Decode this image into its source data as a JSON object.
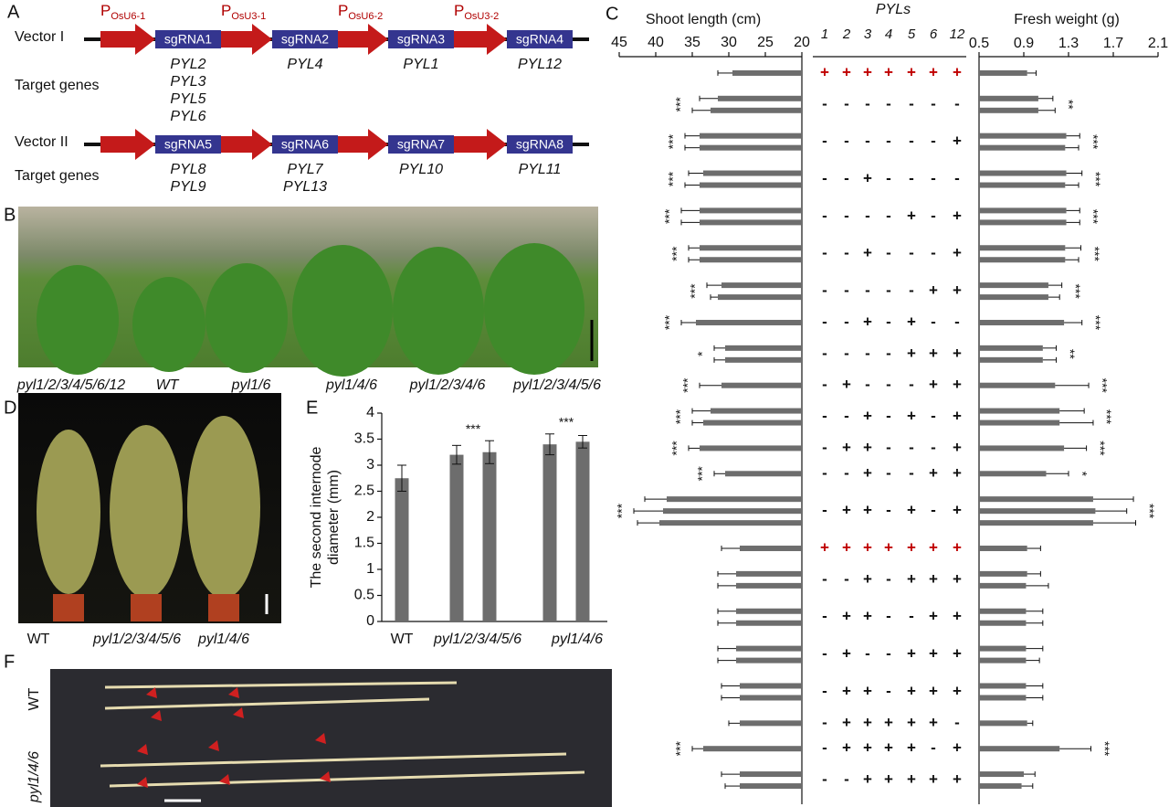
{
  "panel_a": {
    "label": "A",
    "target_label": "Target genes",
    "vectors": [
      {
        "name": "Vector I",
        "promoters": [
          {
            "main": "P",
            "sub": "OsU6-1"
          },
          {
            "main": "P",
            "sub": "OsU3-1"
          },
          {
            "main": "P",
            "sub": "OsU6-2"
          },
          {
            "main": "P",
            "sub": "OsU3-2"
          }
        ],
        "sgrnas": [
          "sgRNA1",
          "sgRNA2",
          "sgRNA3",
          "sgRNA4"
        ],
        "targets": [
          [
            "PYL2",
            "PYL3",
            "PYL5",
            "PYL6"
          ],
          [
            "PYL4"
          ],
          [
            "PYL1"
          ],
          [
            "PYL12"
          ]
        ]
      },
      {
        "name": "Vector II",
        "sgrnas": [
          "sgRNA5",
          "sgRNA6",
          "sgRNA7",
          "sgRNA8"
        ],
        "targets": [
          [
            "PYL8",
            "PYL9"
          ],
          [
            "PYL7",
            "PYL13"
          ],
          [
            "PYL10"
          ],
          [
            "PYL11"
          ]
        ]
      }
    ]
  },
  "panel_b": {
    "label": "B",
    "captions": [
      "pyl1/2/3/4/5/6/12",
      "WT",
      "pyl1/6",
      "pyl1/4/6",
      "pyl1/2/3/4/6",
      "pyl1/2/3/4/5/6"
    ]
  },
  "panel_d": {
    "label": "D",
    "captions": [
      "WT",
      "pyl1/2/3/4/5/6",
      "pyl1/4/6"
    ]
  },
  "panel_e": {
    "label": "E",
    "ylabel": [
      "The second internode",
      "diameter (mm)"
    ],
    "ylim": [
      0,
      4
    ],
    "yticks": [
      0,
      0.5,
      1,
      1.5,
      2,
      2.5,
      3,
      3.5,
      4
    ],
    "color": "#6d6d6d",
    "groups": [
      {
        "label": "WT",
        "values": [
          2.75
        ],
        "errors": [
          0.25
        ]
      },
      {
        "label": "pyl1/2/3/4/5/6",
        "values": [
          3.2,
          3.25
        ],
        "errors": [
          0.18,
          0.22
        ],
        "sig": "***"
      },
      {
        "label": "pyl1/4/6",
        "values": [
          3.4,
          3.45
        ],
        "errors": [
          0.2,
          0.12
        ],
        "sig": "***"
      }
    ]
  },
  "panel_f": {
    "label": "F",
    "labels": [
      "WT",
      "pyl1/4/6"
    ]
  },
  "panel_c": {
    "label": "C",
    "shoot_title": "Shoot length (cm)",
    "xlim": [
      45,
      20
    ],
    "xticks": [
      45,
      40,
      35,
      30,
      25,
      20
    ],
    "weight_title": "Fresh weight (g)",
    "x2lim": [
      0.5,
      2.1
    ],
    "x2ticks": [
      0.5,
      0.9,
      1.3,
      1.7,
      2.1
    ],
    "pyls_title": "PYLs",
    "columns": [
      "1",
      "2",
      "3",
      "4",
      "5",
      "6",
      "12"
    ],
    "color": "#6d6d6d",
    "rows": [
      {
        "signs": [
          "+",
          "+",
          "+",
          "+",
          "+",
          "+",
          "+"
        ],
        "sign_color": "#c00000",
        "shoot": [
          29.5
        ],
        "shoot_err": [
          2
        ],
        "weight": [
          0.93
        ],
        "weight_err": [
          0.08
        ]
      },
      {
        "signs": [
          "-",
          "-",
          "-",
          "-",
          "-",
          "-",
          "-"
        ],
        "shoot": [
          31.5,
          32.5
        ],
        "shoot_err": [
          2.5,
          2.5
        ],
        "weight": [
          1.03,
          1.03
        ],
        "weight_err": [
          0.13,
          0.15
        ],
        "shoot_sig": "***",
        "weight_sig": "**"
      },
      {
        "signs": [
          "-",
          "-",
          "-",
          "-",
          "-",
          "-",
          "+"
        ],
        "shoot": [
          34,
          34
        ],
        "shoot_err": [
          2,
          2
        ],
        "weight": [
          1.28,
          1.27
        ],
        "weight_err": [
          0.12,
          0.12
        ],
        "shoot_sig": "***",
        "weight_sig": "***"
      },
      {
        "signs": [
          "-",
          "-",
          "+",
          "-",
          "-",
          "-",
          "-"
        ],
        "shoot": [
          33.5,
          34
        ],
        "shoot_err": [
          2,
          2
        ],
        "weight": [
          1.28,
          1.27
        ],
        "weight_err": [
          0.14,
          0.12
        ],
        "shoot_sig": "***",
        "weight_sig": "***"
      },
      {
        "signs": [
          "-",
          "-",
          "-",
          "-",
          "+",
          "-",
          "+"
        ],
        "shoot": [
          34,
          34
        ],
        "shoot_err": [
          2.5,
          2.5
        ],
        "weight": [
          1.28,
          1.28
        ],
        "weight_err": [
          0.12,
          0.12
        ],
        "shoot_sig": "***",
        "weight_sig": "***"
      },
      {
        "signs": [
          "-",
          "-",
          "+",
          "-",
          "-",
          "-",
          "+"
        ],
        "shoot": [
          34,
          34
        ],
        "shoot_err": [
          1.5,
          1.5
        ],
        "weight": [
          1.27,
          1.27
        ],
        "weight_err": [
          0.14,
          0.12
        ],
        "shoot_sig": "***",
        "weight_sig": "***"
      },
      {
        "signs": [
          "-",
          "-",
          "-",
          "-",
          "-",
          "+",
          "+"
        ],
        "shoot": [
          31,
          31.5
        ],
        "shoot_err": [
          2,
          1
        ],
        "weight": [
          1.12,
          1.12
        ],
        "weight_err": [
          0.12,
          0.1
        ],
        "shoot_sig": "***",
        "weight_sig": "***"
      },
      {
        "signs": [
          "-",
          "-",
          "+",
          "-",
          "+",
          "-",
          "-"
        ],
        "shoot": [
          34.5
        ],
        "shoot_err": [
          2
        ],
        "weight": [
          1.26
        ],
        "weight_err": [
          0.16
        ],
        "shoot_sig": "***",
        "weight_sig": "***"
      },
      {
        "signs": [
          "-",
          "-",
          "-",
          "-",
          "+",
          "+",
          "+"
        ],
        "shoot": [
          30.5,
          30.5
        ],
        "shoot_err": [
          1.5,
          1.5
        ],
        "weight": [
          1.07,
          1.07
        ],
        "weight_err": [
          0.12,
          0.12
        ],
        "shoot_sig": "*",
        "weight_sig": "**"
      },
      {
        "signs": [
          "-",
          "+",
          "-",
          "-",
          "-",
          "+",
          "+"
        ],
        "shoot": [
          31
        ],
        "shoot_err": [
          3
        ],
        "weight": [
          1.18
        ],
        "weight_err": [
          0.3
        ],
        "shoot_sig": "***",
        "weight_sig": "***"
      },
      {
        "signs": [
          "-",
          "-",
          "+",
          "-",
          "+",
          "-",
          "+"
        ],
        "shoot": [
          32.5,
          33.5
        ],
        "shoot_err": [
          2.5,
          1.5
        ],
        "weight": [
          1.22,
          1.22
        ],
        "weight_err": [
          0.22,
          0.3
        ],
        "shoot_sig": "***",
        "weight_sig": "***"
      },
      {
        "signs": [
          "-",
          "+",
          "+",
          "-",
          "-",
          "-",
          "+"
        ],
        "shoot": [
          34
        ],
        "shoot_err": [
          1.5
        ],
        "weight": [
          1.26
        ],
        "weight_err": [
          0.2
        ],
        "shoot_sig": "***",
        "weight_sig": "***"
      },
      {
        "signs": [
          "-",
          "-",
          "+",
          "-",
          "-",
          "+",
          "+"
        ],
        "shoot": [
          30.5
        ],
        "shoot_err": [
          1.5
        ],
        "weight": [
          1.1
        ],
        "weight_err": [
          0.2
        ],
        "shoot_sig": "***",
        "weight_sig": "*"
      },
      {
        "signs": [
          "-",
          "+",
          "+",
          "-",
          "+",
          "-",
          "+"
        ],
        "shoot": [
          38.5,
          39,
          39.5
        ],
        "shoot_err": [
          3,
          4,
          3
        ],
        "weight": [
          1.52,
          1.54,
          1.52
        ],
        "weight_err": [
          0.36,
          0.28,
          0.38
        ],
        "shoot_sig": "***",
        "weight_sig": "***"
      },
      {
        "signs": [
          "+",
          "+",
          "+",
          "+",
          "+",
          "+",
          "+"
        ],
        "sign_color": "#c00000",
        "shoot": [
          28.5
        ],
        "shoot_err": [
          2.5
        ],
        "weight": [
          0.93
        ],
        "weight_err": [
          0.12
        ]
      },
      {
        "signs": [
          "-",
          "-",
          "+",
          "-",
          "+",
          "+",
          "+"
        ],
        "shoot": [
          29,
          29
        ],
        "shoot_err": [
          2.5,
          2.5
        ],
        "weight": [
          0.93,
          0.92
        ],
        "weight_err": [
          0.12,
          0.2
        ]
      },
      {
        "signs": [
          "-",
          "+",
          "+",
          "-",
          "-",
          "+",
          "+"
        ],
        "shoot": [
          29,
          29
        ],
        "shoot_err": [
          2.5,
          2.5
        ],
        "weight": [
          0.92,
          0.92
        ],
        "weight_err": [
          0.15,
          0.15
        ]
      },
      {
        "signs": [
          "-",
          "+",
          "-",
          "-",
          "+",
          "+",
          "+"
        ],
        "shoot": [
          29,
          29
        ],
        "shoot_err": [
          2.5,
          2.5
        ],
        "weight": [
          0.92,
          0.92
        ],
        "weight_err": [
          0.15,
          0.12
        ]
      },
      {
        "signs": [
          "-",
          "+",
          "+",
          "-",
          "+",
          "+",
          "+"
        ],
        "shoot": [
          28.5,
          28.5
        ],
        "shoot_err": [
          2.5,
          2.5
        ],
        "weight": [
          0.92,
          0.92
        ],
        "weight_err": [
          0.15,
          0.15
        ]
      },
      {
        "signs": [
          "-",
          "+",
          "+",
          "+",
          "+",
          "+",
          "-"
        ],
        "shoot": [
          28.5
        ],
        "shoot_err": [
          1.5
        ],
        "weight": [
          0.93
        ],
        "weight_err": [
          0.05
        ]
      },
      {
        "signs": [
          "-",
          "+",
          "+",
          "+",
          "+",
          "-",
          "+"
        ],
        "shoot": [
          33.5
        ],
        "shoot_err": [
          1.5
        ],
        "weight": [
          1.22
        ],
        "weight_err": [
          0.28
        ],
        "shoot_sig": "***",
        "weight_sig": "***"
      },
      {
        "signs": [
          "-",
          "-",
          "+",
          "+",
          "+",
          "+",
          "+"
        ],
        "shoot": [
          28.5,
          28.5
        ],
        "shoot_err": [
          2.5,
          2
        ],
        "weight": [
          0.9,
          0.88
        ],
        "weight_err": [
          0.1,
          0.1
        ]
      }
    ]
  }
}
